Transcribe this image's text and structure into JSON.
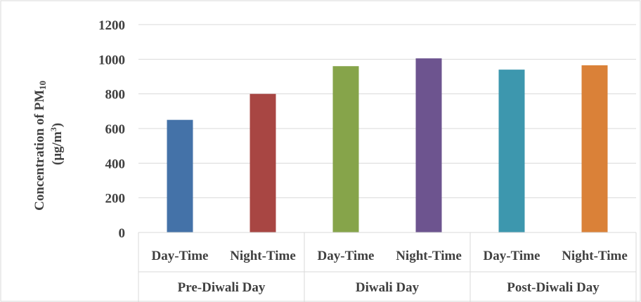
{
  "chart_data": {
    "type": "bar",
    "ylabel_line1": "Concentration of PM",
    "ylabel_sub": "10",
    "ylabel_line2_prefix": "(µg/m",
    "ylabel_line2_sup": "3",
    "ylabel_line2_suffix": ")",
    "ylim": [
      0,
      1200
    ],
    "yticks": [
      "0",
      "200",
      "400",
      "600",
      "800",
      "1000",
      "1200"
    ],
    "grid": true,
    "groups": [
      "Pre-Diwali Day",
      "Diwali Day",
      "Post-Diwali Day"
    ],
    "categories": [
      "Day-Time",
      "Night-Time",
      "Day-Time",
      "Night-Time",
      "Day-Time",
      "Night-Time"
    ],
    "group_index": [
      0,
      0,
      1,
      1,
      2,
      2
    ],
    "values": [
      650,
      800,
      960,
      1005,
      940,
      965
    ],
    "colors": [
      "#4472a8",
      "#a84643",
      "#86a44a",
      "#6d548f",
      "#3d97ae",
      "#da8138"
    ]
  }
}
